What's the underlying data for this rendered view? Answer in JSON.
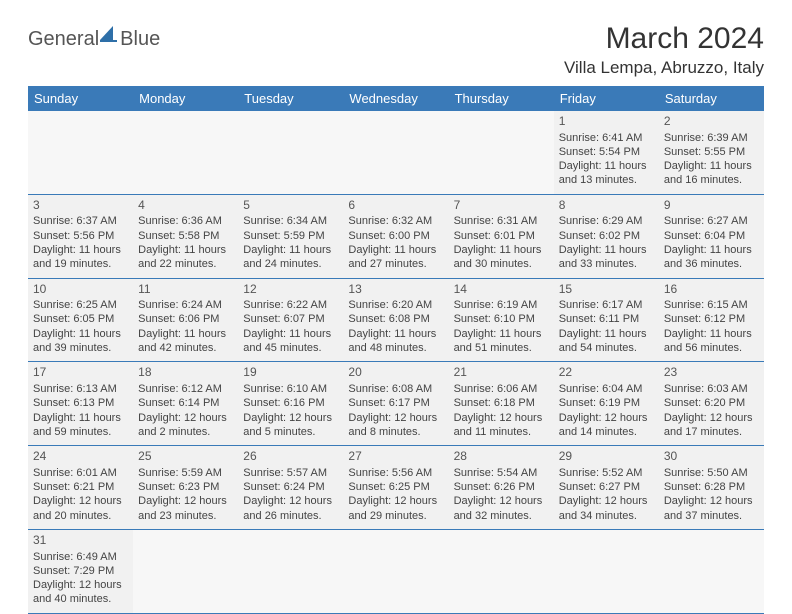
{
  "logo": {
    "text1": "General",
    "text2": "Blue",
    "sail_color": "#2e6fa8"
  },
  "header": {
    "month_title": "March 2024",
    "location": "Villa Lempa, Abruzzo, Italy"
  },
  "colors": {
    "header_bg": "#3a7ab8",
    "header_fg": "#ffffff",
    "cell_bg": "#f1f1f1",
    "border": "#3a7ab8"
  },
  "weekdays": [
    "Sunday",
    "Monday",
    "Tuesday",
    "Wednesday",
    "Thursday",
    "Friday",
    "Saturday"
  ],
  "weeks": [
    [
      null,
      null,
      null,
      null,
      null,
      {
        "d": "1",
        "sr": "Sunrise: 6:41 AM",
        "ss": "Sunset: 5:54 PM",
        "dl": "Daylight: 11 hours and 13 minutes."
      },
      {
        "d": "2",
        "sr": "Sunrise: 6:39 AM",
        "ss": "Sunset: 5:55 PM",
        "dl": "Daylight: 11 hours and 16 minutes."
      }
    ],
    [
      {
        "d": "3",
        "sr": "Sunrise: 6:37 AM",
        "ss": "Sunset: 5:56 PM",
        "dl": "Daylight: 11 hours and 19 minutes."
      },
      {
        "d": "4",
        "sr": "Sunrise: 6:36 AM",
        "ss": "Sunset: 5:58 PM",
        "dl": "Daylight: 11 hours and 22 minutes."
      },
      {
        "d": "5",
        "sr": "Sunrise: 6:34 AM",
        "ss": "Sunset: 5:59 PM",
        "dl": "Daylight: 11 hours and 24 minutes."
      },
      {
        "d": "6",
        "sr": "Sunrise: 6:32 AM",
        "ss": "Sunset: 6:00 PM",
        "dl": "Daylight: 11 hours and 27 minutes."
      },
      {
        "d": "7",
        "sr": "Sunrise: 6:31 AM",
        "ss": "Sunset: 6:01 PM",
        "dl": "Daylight: 11 hours and 30 minutes."
      },
      {
        "d": "8",
        "sr": "Sunrise: 6:29 AM",
        "ss": "Sunset: 6:02 PM",
        "dl": "Daylight: 11 hours and 33 minutes."
      },
      {
        "d": "9",
        "sr": "Sunrise: 6:27 AM",
        "ss": "Sunset: 6:04 PM",
        "dl": "Daylight: 11 hours and 36 minutes."
      }
    ],
    [
      {
        "d": "10",
        "sr": "Sunrise: 6:25 AM",
        "ss": "Sunset: 6:05 PM",
        "dl": "Daylight: 11 hours and 39 minutes."
      },
      {
        "d": "11",
        "sr": "Sunrise: 6:24 AM",
        "ss": "Sunset: 6:06 PM",
        "dl": "Daylight: 11 hours and 42 minutes."
      },
      {
        "d": "12",
        "sr": "Sunrise: 6:22 AM",
        "ss": "Sunset: 6:07 PM",
        "dl": "Daylight: 11 hours and 45 minutes."
      },
      {
        "d": "13",
        "sr": "Sunrise: 6:20 AM",
        "ss": "Sunset: 6:08 PM",
        "dl": "Daylight: 11 hours and 48 minutes."
      },
      {
        "d": "14",
        "sr": "Sunrise: 6:19 AM",
        "ss": "Sunset: 6:10 PM",
        "dl": "Daylight: 11 hours and 51 minutes."
      },
      {
        "d": "15",
        "sr": "Sunrise: 6:17 AM",
        "ss": "Sunset: 6:11 PM",
        "dl": "Daylight: 11 hours and 54 minutes."
      },
      {
        "d": "16",
        "sr": "Sunrise: 6:15 AM",
        "ss": "Sunset: 6:12 PM",
        "dl": "Daylight: 11 hours and 56 minutes."
      }
    ],
    [
      {
        "d": "17",
        "sr": "Sunrise: 6:13 AM",
        "ss": "Sunset: 6:13 PM",
        "dl": "Daylight: 11 hours and 59 minutes."
      },
      {
        "d": "18",
        "sr": "Sunrise: 6:12 AM",
        "ss": "Sunset: 6:14 PM",
        "dl": "Daylight: 12 hours and 2 minutes."
      },
      {
        "d": "19",
        "sr": "Sunrise: 6:10 AM",
        "ss": "Sunset: 6:16 PM",
        "dl": "Daylight: 12 hours and 5 minutes."
      },
      {
        "d": "20",
        "sr": "Sunrise: 6:08 AM",
        "ss": "Sunset: 6:17 PM",
        "dl": "Daylight: 12 hours and 8 minutes."
      },
      {
        "d": "21",
        "sr": "Sunrise: 6:06 AM",
        "ss": "Sunset: 6:18 PM",
        "dl": "Daylight: 12 hours and 11 minutes."
      },
      {
        "d": "22",
        "sr": "Sunrise: 6:04 AM",
        "ss": "Sunset: 6:19 PM",
        "dl": "Daylight: 12 hours and 14 minutes."
      },
      {
        "d": "23",
        "sr": "Sunrise: 6:03 AM",
        "ss": "Sunset: 6:20 PM",
        "dl": "Daylight: 12 hours and 17 minutes."
      }
    ],
    [
      {
        "d": "24",
        "sr": "Sunrise: 6:01 AM",
        "ss": "Sunset: 6:21 PM",
        "dl": "Daylight: 12 hours and 20 minutes."
      },
      {
        "d": "25",
        "sr": "Sunrise: 5:59 AM",
        "ss": "Sunset: 6:23 PM",
        "dl": "Daylight: 12 hours and 23 minutes."
      },
      {
        "d": "26",
        "sr": "Sunrise: 5:57 AM",
        "ss": "Sunset: 6:24 PM",
        "dl": "Daylight: 12 hours and 26 minutes."
      },
      {
        "d": "27",
        "sr": "Sunrise: 5:56 AM",
        "ss": "Sunset: 6:25 PM",
        "dl": "Daylight: 12 hours and 29 minutes."
      },
      {
        "d": "28",
        "sr": "Sunrise: 5:54 AM",
        "ss": "Sunset: 6:26 PM",
        "dl": "Daylight: 12 hours and 32 minutes."
      },
      {
        "d": "29",
        "sr": "Sunrise: 5:52 AM",
        "ss": "Sunset: 6:27 PM",
        "dl": "Daylight: 12 hours and 34 minutes."
      },
      {
        "d": "30",
        "sr": "Sunrise: 5:50 AM",
        "ss": "Sunset: 6:28 PM",
        "dl": "Daylight: 12 hours and 37 minutes."
      }
    ],
    [
      {
        "d": "31",
        "sr": "Sunrise: 6:49 AM",
        "ss": "Sunset: 7:29 PM",
        "dl": "Daylight: 12 hours and 40 minutes."
      },
      null,
      null,
      null,
      null,
      null,
      null
    ]
  ]
}
